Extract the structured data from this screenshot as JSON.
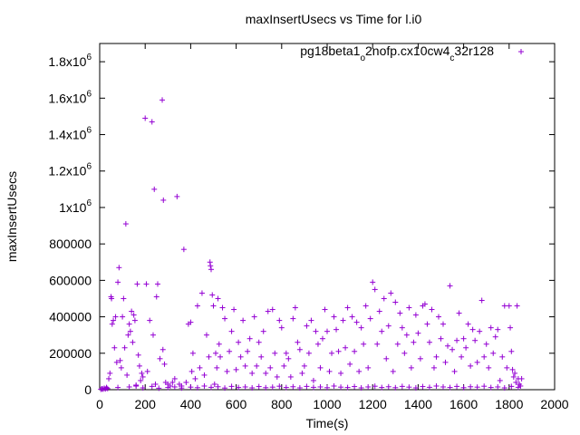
{
  "chart_data": {
    "type": "scatter",
    "title": "maxInsertUsecs vs Time for l.i0",
    "xlabel": "Time(s)",
    "ylabel": "maxInsertUsecs",
    "xlim": [
      0,
      2000
    ],
    "ylim": [
      0,
      1900000
    ],
    "x_ticks": [
      {
        "value": 0,
        "label": "0"
      },
      {
        "value": 200,
        "label": "200"
      },
      {
        "value": 400,
        "label": "400"
      },
      {
        "value": 600,
        "label": "600"
      },
      {
        "value": 800,
        "label": "800"
      },
      {
        "value": 1000,
        "label": "1000"
      },
      {
        "value": 1200,
        "label": "1200"
      },
      {
        "value": 1400,
        "label": "1400"
      },
      {
        "value": 1600,
        "label": "1600"
      },
      {
        "value": 1800,
        "label": "1800"
      },
      {
        "value": 2000,
        "label": "2000"
      }
    ],
    "y_ticks": [
      {
        "value": 0,
        "label": "0"
      },
      {
        "value": 200000,
        "label": "200000"
      },
      {
        "value": 400000,
        "label": "400000"
      },
      {
        "value": 600000,
        "label": "600000"
      },
      {
        "value": 800000,
        "label": "800000"
      },
      {
        "value": 1000000,
        "label": "1x10",
        "sup": "6"
      },
      {
        "value": 1200000,
        "label": "1.2x10",
        "sup": "6"
      },
      {
        "value": 1400000,
        "label": "1.4x10",
        "sup": "6"
      },
      {
        "value": 1600000,
        "label": "1.6x10",
        "sup": "6"
      },
      {
        "value": 1800000,
        "label": "1.8x10",
        "sup": "6"
      }
    ],
    "grid": false,
    "legend_position": "top-right",
    "marker": "+",
    "series": [
      {
        "name_parts": [
          {
            "text": "pg18beta1",
            "sub": false
          },
          {
            "text": "o",
            "sub": true
          },
          {
            "text": "2nofp.cx10cw4",
            "sub": false
          },
          {
            "text": "c",
            "sub": true
          },
          {
            "text": "32r128",
            "sub": false
          }
        ],
        "color": "#9400d3",
        "points": [
          [
            5,
            2000
          ],
          [
            10,
            5000
          ],
          [
            15,
            3000
          ],
          [
            20,
            8000
          ],
          [
            25,
            4000
          ],
          [
            30,
            12000
          ],
          [
            35,
            6000
          ],
          [
            40,
            60000
          ],
          [
            45,
            90000
          ],
          [
            50,
            510000
          ],
          [
            52,
            500000
          ],
          [
            55,
            360000
          ],
          [
            60,
            380000
          ],
          [
            65,
            230000
          ],
          [
            70,
            400000
          ],
          [
            75,
            150000
          ],
          [
            80,
            590000
          ],
          [
            85,
            670000
          ],
          [
            90,
            160000
          ],
          [
            95,
            120000
          ],
          [
            100,
            400000
          ],
          [
            105,
            500000
          ],
          [
            110,
            230000
          ],
          [
            115,
            910000
          ],
          [
            120,
            80000
          ],
          [
            125,
            300000
          ],
          [
            130,
            360000
          ],
          [
            135,
            320000
          ],
          [
            140,
            430000
          ],
          [
            145,
            260000
          ],
          [
            150,
            410000
          ],
          [
            155,
            380000
          ],
          [
            160,
            20000
          ],
          [
            165,
            580000
          ],
          [
            170,
            190000
          ],
          [
            175,
            130000
          ],
          [
            180,
            50000
          ],
          [
            185,
            90000
          ],
          [
            190,
            70000
          ],
          [
            200,
            1490000
          ],
          [
            205,
            580000
          ],
          [
            210,
            100000
          ],
          [
            220,
            380000
          ],
          [
            230,
            1470000
          ],
          [
            235,
            300000
          ],
          [
            240,
            1100000
          ],
          [
            245,
            30000
          ],
          [
            250,
            510000
          ],
          [
            255,
            580000
          ],
          [
            265,
            170000
          ],
          [
            275,
            1590000
          ],
          [
            278,
            220000
          ],
          [
            280,
            1040000
          ],
          [
            285,
            140000
          ],
          [
            290,
            40000
          ],
          [
            300,
            30000
          ],
          [
            310,
            20000
          ],
          [
            320,
            40000
          ],
          [
            330,
            60000
          ],
          [
            340,
            1060000
          ],
          [
            350,
            30000
          ],
          [
            360,
            20000
          ],
          [
            370,
            770000
          ],
          [
            380,
            40000
          ],
          [
            390,
            360000
          ],
          [
            400,
            370000
          ],
          [
            405,
            100000
          ],
          [
            410,
            200000
          ],
          [
            420,
            60000
          ],
          [
            430,
            460000
          ],
          [
            440,
            120000
          ],
          [
            450,
            530000
          ],
          [
            460,
            80000
          ],
          [
            470,
            300000
          ],
          [
            480,
            180000
          ],
          [
            485,
            700000
          ],
          [
            487,
            680000
          ],
          [
            490,
            660000
          ],
          [
            495,
            520000
          ],
          [
            500,
            460000
          ],
          [
            505,
            30000
          ],
          [
            510,
            200000
          ],
          [
            515,
            120000
          ],
          [
            520,
            500000
          ],
          [
            525,
            250000
          ],
          [
            530,
            180000
          ],
          [
            540,
            450000
          ],
          [
            550,
            390000
          ],
          [
            560,
            100000
          ],
          [
            570,
            210000
          ],
          [
            580,
            320000
          ],
          [
            590,
            440000
          ],
          [
            600,
            110000
          ],
          [
            610,
            260000
          ],
          [
            620,
            180000
          ],
          [
            630,
            380000
          ],
          [
            640,
            130000
          ],
          [
            650,
            210000
          ],
          [
            660,
            280000
          ],
          [
            670,
            90000
          ],
          [
            680,
            400000
          ],
          [
            690,
            130000
          ],
          [
            700,
            260000
          ],
          [
            710,
            180000
          ],
          [
            720,
            320000
          ],
          [
            730,
            90000
          ],
          [
            740,
            430000
          ],
          [
            750,
            120000
          ],
          [
            760,
            440000
          ],
          [
            770,
            200000
          ],
          [
            780,
            70000
          ],
          [
            790,
            380000
          ],
          [
            800,
            340000
          ],
          [
            810,
            130000
          ],
          [
            820,
            200000
          ],
          [
            830,
            170000
          ],
          [
            840,
            70000
          ],
          [
            850,
            390000
          ],
          [
            860,
            450000
          ],
          [
            870,
            260000
          ],
          [
            880,
            220000
          ],
          [
            890,
            90000
          ],
          [
            900,
            130000
          ],
          [
            910,
            350000
          ],
          [
            920,
            200000
          ],
          [
            930,
            380000
          ],
          [
            940,
            50000
          ],
          [
            950,
            320000
          ],
          [
            960,
            250000
          ],
          [
            970,
            120000
          ],
          [
            980,
            280000
          ],
          [
            990,
            440000
          ],
          [
            1000,
            320000
          ],
          [
            1010,
            100000
          ],
          [
            1020,
            200000
          ],
          [
            1030,
            400000
          ],
          [
            1040,
            330000
          ],
          [
            1050,
            210000
          ],
          [
            1060,
            90000
          ],
          [
            1070,
            380000
          ],
          [
            1080,
            230000
          ],
          [
            1090,
            450000
          ],
          [
            1100,
            140000
          ],
          [
            1110,
            400000
          ],
          [
            1120,
            210000
          ],
          [
            1130,
            370000
          ],
          [
            1140,
            100000
          ],
          [
            1150,
            340000
          ],
          [
            1160,
            250000
          ],
          [
            1170,
            460000
          ],
          [
            1180,
            120000
          ],
          [
            1190,
            390000
          ],
          [
            1200,
            590000
          ],
          [
            1210,
            550000
          ],
          [
            1220,
            250000
          ],
          [
            1230,
            430000
          ],
          [
            1240,
            320000
          ],
          [
            1250,
            500000
          ],
          [
            1260,
            170000
          ],
          [
            1270,
            350000
          ],
          [
            1280,
            530000
          ],
          [
            1290,
            100000
          ],
          [
            1300,
            480000
          ],
          [
            1310,
            250000
          ],
          [
            1320,
            420000
          ],
          [
            1330,
            340000
          ],
          [
            1340,
            200000
          ],
          [
            1350,
            300000
          ],
          [
            1360,
            450000
          ],
          [
            1370,
            120000
          ],
          [
            1380,
            260000
          ],
          [
            1390,
            410000
          ],
          [
            1400,
            310000
          ],
          [
            1410,
            170000
          ],
          [
            1420,
            460000
          ],
          [
            1430,
            470000
          ],
          [
            1440,
            360000
          ],
          [
            1450,
            260000
          ],
          [
            1460,
            440000
          ],
          [
            1470,
            120000
          ],
          [
            1480,
            180000
          ],
          [
            1490,
            400000
          ],
          [
            1500,
            280000
          ],
          [
            1510,
            360000
          ],
          [
            1520,
            150000
          ],
          [
            1530,
            240000
          ],
          [
            1540,
            570000
          ],
          [
            1550,
            220000
          ],
          [
            1560,
            100000
          ],
          [
            1570,
            270000
          ],
          [
            1580,
            420000
          ],
          [
            1590,
            180000
          ],
          [
            1600,
            280000
          ],
          [
            1610,
            230000
          ],
          [
            1620,
            360000
          ],
          [
            1630,
            130000
          ],
          [
            1640,
            330000
          ],
          [
            1650,
            270000
          ],
          [
            1660,
            150000
          ],
          [
            1670,
            320000
          ],
          [
            1680,
            490000
          ],
          [
            1690,
            180000
          ],
          [
            1700,
            250000
          ],
          [
            1710,
            120000
          ],
          [
            1720,
            340000
          ],
          [
            1730,
            200000
          ],
          [
            1740,
            290000
          ],
          [
            1750,
            330000
          ],
          [
            1760,
            50000
          ],
          [
            1770,
            180000
          ],
          [
            1780,
            460000
          ],
          [
            1790,
            120000
          ],
          [
            1800,
            460000
          ],
          [
            1805,
            340000
          ],
          [
            1810,
            210000
          ],
          [
            1815,
            110000
          ],
          [
            1820,
            70000
          ],
          [
            1825,
            90000
          ],
          [
            1830,
            40000
          ],
          [
            1835,
            460000
          ],
          [
            1840,
            60000
          ],
          [
            1845,
            30000
          ],
          [
            1850,
            20000
          ],
          [
            1855,
            60000
          ],
          [
            30,
            10000
          ],
          [
            80,
            12000
          ],
          [
            130,
            15000
          ],
          [
            160,
            25000
          ],
          [
            190,
            10000
          ],
          [
            230,
            18000
          ],
          [
            260,
            8000
          ],
          [
            300,
            12000
          ],
          [
            330,
            15000
          ],
          [
            360,
            9000
          ],
          [
            400,
            14000
          ],
          [
            430,
            11000
          ],
          [
            460,
            20000
          ],
          [
            490,
            13000
          ],
          [
            520,
            16000
          ],
          [
            550,
            9000
          ],
          [
            580,
            18000
          ],
          [
            610,
            12000
          ],
          [
            640,
            15000
          ],
          [
            670,
            10000
          ],
          [
            700,
            17000
          ],
          [
            730,
            11000
          ],
          [
            760,
            14000
          ],
          [
            790,
            19000
          ],
          [
            820,
            12000
          ],
          [
            850,
            16000
          ],
          [
            880,
            10000
          ],
          [
            910,
            18000
          ],
          [
            940,
            13000
          ],
          [
            970,
            15000
          ],
          [
            1000,
            11000
          ],
          [
            1030,
            20000
          ],
          [
            1060,
            14000
          ],
          [
            1090,
            12000
          ],
          [
            1120,
            17000
          ],
          [
            1150,
            10000
          ],
          [
            1180,
            15000
          ],
          [
            1210,
            19000
          ],
          [
            1240,
            12000
          ],
          [
            1270,
            16000
          ],
          [
            1300,
            11000
          ],
          [
            1330,
            18000
          ],
          [
            1360,
            14000
          ],
          [
            1390,
            10000
          ],
          [
            1420,
            17000
          ],
          [
            1450,
            13000
          ],
          [
            1480,
            20000
          ],
          [
            1510,
            15000
          ],
          [
            1540,
            12000
          ],
          [
            1570,
            18000
          ],
          [
            1600,
            11000
          ],
          [
            1630,
            16000
          ],
          [
            1660,
            14000
          ],
          [
            1690,
            19000
          ],
          [
            1720,
            12000
          ],
          [
            1750,
            15000
          ],
          [
            1780,
            10000
          ],
          [
            1810,
            18000
          ],
          [
            1840,
            13000
          ]
        ]
      }
    ]
  }
}
